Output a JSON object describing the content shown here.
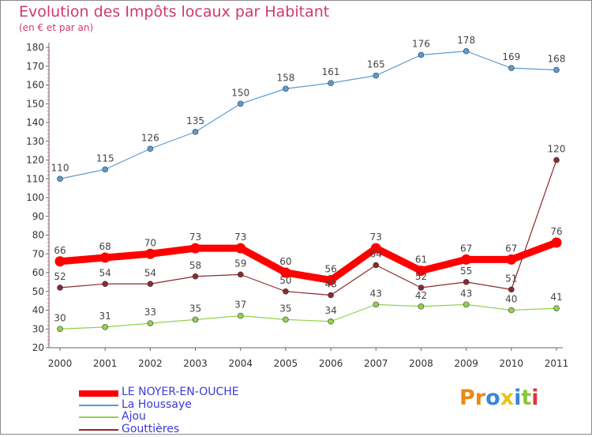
{
  "header": {
    "title": "Evolution des Impôts locaux par Habitant",
    "subtitle": "(en € et par an)"
  },
  "logo": {
    "text": "Proxiti",
    "letters": [
      {
        "ch": "P",
        "color": "#e88a18"
      },
      {
        "ch": "r",
        "color": "#e88a18"
      },
      {
        "ch": "o",
        "color": "#3a86d8"
      },
      {
        "ch": "x",
        "color": "#e8c418"
      },
      {
        "ch": "i",
        "color": "#3a86d8"
      },
      {
        "ch": "t",
        "color": "#8ac83a"
      },
      {
        "ch": "i",
        "color": "#d8383a"
      }
    ]
  },
  "chart_data": {
    "type": "line",
    "title": "Evolution des Impôts locaux par Habitant",
    "subtitle": "(en € et par an)",
    "x": [
      "2000",
      "2001",
      "2002",
      "2003",
      "2004",
      "2005",
      "2006",
      "2007",
      "2008",
      "2009",
      "2010",
      "2011"
    ],
    "ylim": [
      20,
      180
    ],
    "yticks": [
      20,
      30,
      40,
      50,
      60,
      70,
      80,
      90,
      100,
      110,
      120,
      130,
      140,
      150,
      160,
      170,
      180
    ],
    "grid": false,
    "legend_position": "bottom-left",
    "series": [
      {
        "name": "LE NOYER-EN-OUCHE",
        "color": "#ff0000",
        "values": [
          66,
          68,
          70,
          73,
          73,
          60,
          56,
          73,
          61,
          67,
          67,
          76
        ]
      },
      {
        "name": "La Houssaye",
        "color": "#5b9bd1",
        "values": [
          110,
          115,
          126,
          135,
          150,
          158,
          161,
          165,
          176,
          178,
          169,
          168
        ]
      },
      {
        "name": "Ajou",
        "color": "#92d050",
        "values": [
          30,
          31,
          33,
          35,
          37,
          35,
          34,
          43,
          42,
          43,
          40,
          41
        ]
      },
      {
        "name": "Gouttières",
        "color": "#8b2a2e",
        "values": [
          52,
          54,
          54,
          58,
          59,
          50,
          48,
          64,
          52,
          55,
          51,
          120
        ]
      }
    ]
  }
}
